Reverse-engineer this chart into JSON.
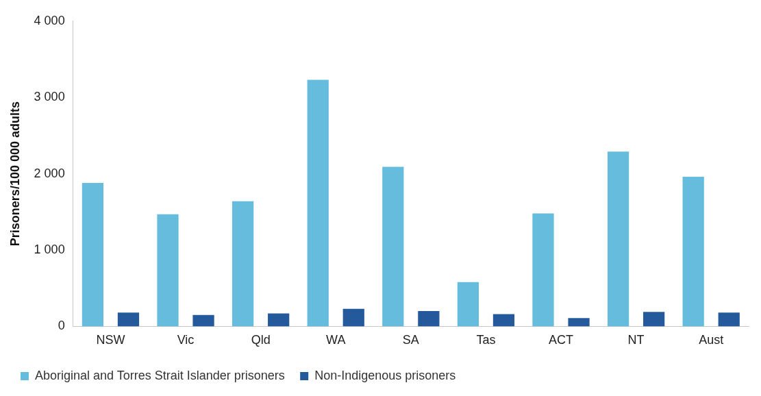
{
  "chart_data": {
    "type": "bar",
    "ylabel": "Prisoners/100 000 adults",
    "categories": [
      "NSW",
      "Vic",
      "Qld",
      "WA",
      "SA",
      "Tas",
      "ACT",
      "NT",
      "Aust"
    ],
    "series": [
      {
        "name": "Aboriginal and Torres Strait Islander prisoners",
        "color": "#65bcdc",
        "values": [
          1880,
          1470,
          1640,
          3230,
          2090,
          580,
          1480,
          2290,
          1960
        ]
      },
      {
        "name": "Non-Indigenous prisoners",
        "color": "#245a9b",
        "values": [
          180,
          150,
          170,
          230,
          200,
          160,
          110,
          190,
          180
        ]
      }
    ],
    "ylim": [
      0,
      4000
    ],
    "yticks": [
      {
        "value": 0,
        "label": "0"
      },
      {
        "value": 1000,
        "label": "1 000"
      },
      {
        "value": 2000,
        "label": "2 000"
      },
      {
        "value": 3000,
        "label": "3 000"
      },
      {
        "value": 4000,
        "label": "4 000"
      }
    ],
    "grid": false,
    "legend": "bottom"
  }
}
